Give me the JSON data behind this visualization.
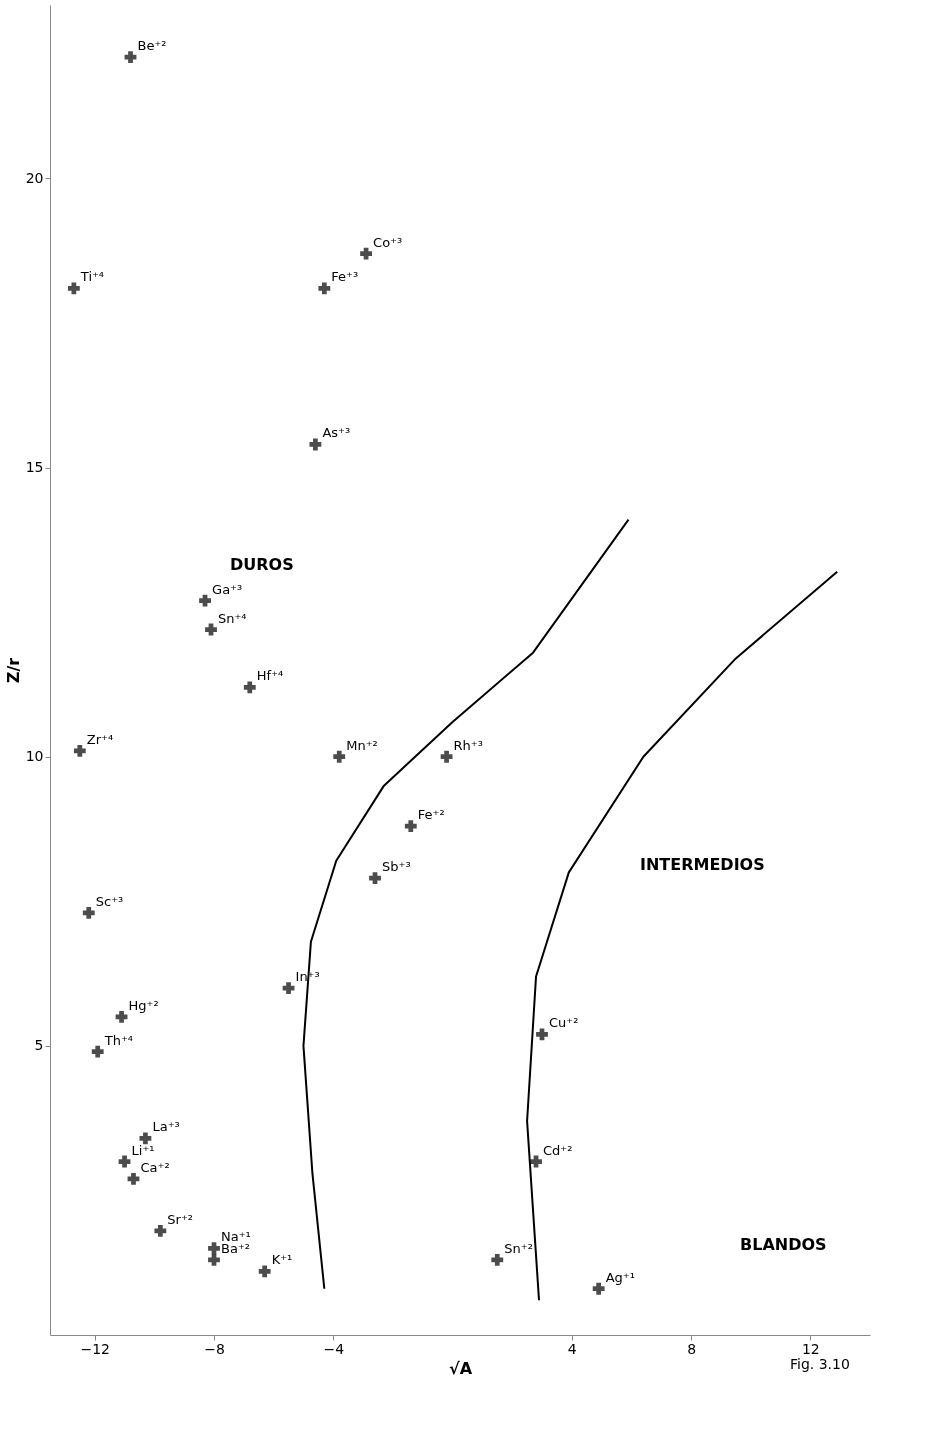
{
  "chart_data": {
    "type": "scatter",
    "xlabel": "√A",
    "ylabel": "Z/r",
    "xlim": [
      -13.5,
      14
    ],
    "ylim": [
      0,
      23
    ],
    "xticks": [
      -12,
      -8,
      -4,
      4,
      8,
      12
    ],
    "yticks": [
      5,
      10,
      15,
      20
    ],
    "grid": false,
    "series": [
      {
        "marker": "cross",
        "color": "#000000",
        "x": [
          -10.8,
          -12.7,
          -2.9,
          -4.3,
          -4.6,
          -8.3,
          -8.1,
          -6.8,
          -12.5,
          -3.8,
          -0.2,
          -1.4,
          -2.6,
          -12.2,
          -5.5,
          -11.1,
          3.0,
          -11.9,
          -10.3,
          -11.0,
          -10.7,
          2.8,
          -9.8,
          -8.0,
          -8.0,
          -6.3,
          1.5,
          4.9
        ],
        "values": [
          22.1,
          18.1,
          18.7,
          18.1,
          15.4,
          12.7,
          12.2,
          11.2,
          10.1,
          10.0,
          10.0,
          8.8,
          7.9,
          7.3,
          6.0,
          5.5,
          5.2,
          4.9,
          3.4,
          3.0,
          2.7,
          3.0,
          1.8,
          1.5,
          1.3,
          1.1,
          1.3,
          0.8
        ]
      },
      {
        "type": "line",
        "color": "#000000",
        "line_style": "solid",
        "x": [
          -4.3,
          -4.7,
          -5.0,
          -4.75,
          -3.9,
          -2.3,
          0,
          2.7,
          5.9
        ],
        "values": [
          0.8,
          2.8,
          5.0,
          6.8,
          8.2,
          9.5,
          10.6,
          11.8,
          14.1
        ]
      },
      {
        "type": "line",
        "color": "#000000",
        "line_style": "solid",
        "x": [
          2.9,
          2.5,
          2.8,
          3.9,
          6.4,
          9.5,
          12.9
        ],
        "values": [
          0.6,
          3.7,
          6.2,
          8.0,
          10.0,
          11.7,
          13.2
        ]
      }
    ],
    "annotations": [
      {
        "text": "Be⁺²",
        "x": -10.8,
        "y": 22.1
      },
      {
        "text": "Ti⁺⁴",
        "x": -12.7,
        "y": 18.1
      },
      {
        "text": "Co⁺³",
        "x": -2.9,
        "y": 18.7
      },
      {
        "text": "Fe⁺³",
        "x": -4.3,
        "y": 18.1
      },
      {
        "text": "As⁺³",
        "x": -4.6,
        "y": 15.4
      },
      {
        "text": "Ga⁺³",
        "x": -8.3,
        "y": 12.7
      },
      {
        "text": "Sn⁺⁴",
        "x": -8.1,
        "y": 12.2
      },
      {
        "text": "Hf⁺⁴",
        "x": -6.8,
        "y": 11.2
      },
      {
        "text": "Zr⁺⁴",
        "x": -12.5,
        "y": 10.1
      },
      {
        "text": "Mn⁺²",
        "x": -3.8,
        "y": 10.0
      },
      {
        "text": "Rh⁺³",
        "x": -0.2,
        "y": 10.0
      },
      {
        "text": "Fe⁺²",
        "x": -1.4,
        "y": 8.8
      },
      {
        "text": "Sb⁺³",
        "x": -2.6,
        "y": 7.9
      },
      {
        "text": "Sc⁺³",
        "x": -12.2,
        "y": 7.3
      },
      {
        "text": "In⁺³",
        "x": -5.5,
        "y": 6.0
      },
      {
        "text": "Hg⁺²",
        "x": -11.1,
        "y": 5.5
      },
      {
        "text": "Cu⁺²",
        "x": 3.0,
        "y": 5.2
      },
      {
        "text": "Th⁺⁴",
        "x": -11.9,
        "y": 4.9
      },
      {
        "text": "La⁺³",
        "x": -10.3,
        "y": 3.4
      },
      {
        "text": "Li⁺¹",
        "x": -11.0,
        "y": 3.0
      },
      {
        "text": "Ca⁺²",
        "x": -10.7,
        "y": 2.7
      },
      {
        "text": "Cd⁺²",
        "x": 2.8,
        "y": 3.0
      },
      {
        "text": "Sr⁺²",
        "x": -9.8,
        "y": 1.8
      },
      {
        "text": "Na⁺¹",
        "x": -8.0,
        "y": 1.5
      },
      {
        "text": "Ba⁺²",
        "x": -8.0,
        "y": 1.3
      },
      {
        "text": "K⁺¹",
        "x": -6.3,
        "y": 1.1
      },
      {
        "text": "Sn⁺²",
        "x": 1.5,
        "y": 1.3
      },
      {
        "text": "Ag⁺¹",
        "x": 4.9,
        "y": 0.8
      },
      "DUROS",
      "INTERMEDIOS",
      "BLANDOS",
      "Fig. 3.10"
    ]
  }
}
